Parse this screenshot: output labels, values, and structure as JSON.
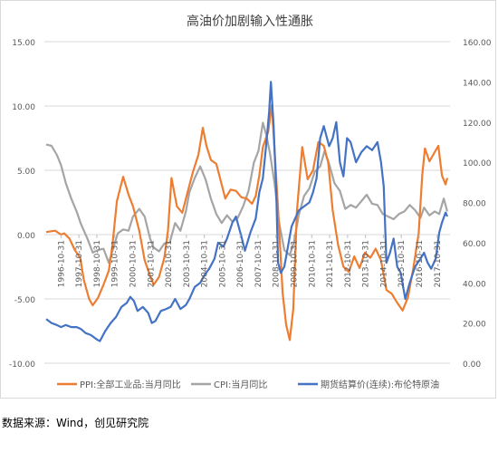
{
  "source_note": "数据来源：Wind，创见研究院",
  "colors": {
    "ppi": "#ED7D31",
    "cpi": "#A5A5A5",
    "oil": "#4472C4",
    "grid": "#D9D9D9",
    "text": "#595959"
  },
  "chart_data": {
    "type": "line",
    "title": "高油价加剧输入性通胀",
    "y_left": {
      "ylim": [
        -10,
        15
      ],
      "ticks": [
        "-10.00",
        "-5.00",
        "0.00",
        "5.00",
        "10.00",
        "15.00"
      ]
    },
    "y_right": {
      "ylim": [
        0,
        160
      ],
      "ticks": [
        "0.00",
        "20.00",
        "40.00",
        "60.00",
        "80.00",
        "100.00",
        "120.00",
        "140.00",
        "160.00"
      ]
    },
    "x_ticks": [
      "1996-10-31",
      "1997-10-31",
      "1998-10-31",
      "1999-10-31",
      "2000-10-31",
      "2001-10-31",
      "2002-10-31",
      "2003-10-31",
      "2004-10-31",
      "2005-10-31",
      "2006-10-31",
      "2007-10-31",
      "2008-10-31",
      "2009-10-31",
      "2010-10-31",
      "2011-10-31",
      "2012-10-31",
      "2013-10-31",
      "2014-10-31",
      "2015-10-31",
      "2016-10-31",
      "2017-10-31"
    ],
    "legend": {
      "position": "bottom"
    },
    "series": [
      {
        "name": "PPI:全部工业品:当月同比",
        "axis": "left",
        "color": "#ED7D31",
        "x": [
          1996.0,
          1996.5,
          1996.83,
          1997.0,
          1997.3,
          1997.6,
          1997.9,
          1998.1,
          1998.4,
          1998.6,
          1998.9,
          1999.2,
          1999.5,
          1999.7,
          1999.95,
          2000.3,
          2000.6,
          2000.85,
          2001.2,
          2001.5,
          2001.8,
          2002.0,
          2002.3,
          2002.6,
          2002.8,
          2003.0,
          2003.3,
          2003.6,
          2003.9,
          2004.2,
          2004.5,
          2004.75,
          2004.95,
          2005.2,
          2005.5,
          2005.8,
          2006.0,
          2006.3,
          2006.6,
          2006.9,
          2007.2,
          2007.5,
          2007.7,
          2007.9,
          2008.1,
          2008.4,
          2008.6,
          2008.75,
          2008.95,
          2009.2,
          2009.4,
          2009.6,
          2009.8,
          2010.0,
          2010.3,
          2010.6,
          2010.9,
          2011.2,
          2011.5,
          2011.75,
          2012.0,
          2012.3,
          2012.6,
          2012.9,
          2013.2,
          2013.5,
          2013.8,
          2014.1,
          2014.4,
          2014.7,
          2015.0,
          2015.3,
          2015.6,
          2015.9,
          2016.2,
          2016.5,
          2016.8,
          2017.0,
          2017.15,
          2017.4,
          2017.65,
          2017.9,
          2018.1,
          2018.3,
          2018.4
        ],
        "y": [
          0.2,
          0.3,
          0.0,
          0.1,
          -0.3,
          -1.2,
          -1.8,
          -3.5,
          -5.0,
          -5.5,
          -4.9,
          -3.9,
          -2.8,
          -0.8,
          2.6,
          4.5,
          3.1,
          2.2,
          0.3,
          -2.0,
          -3.2,
          -3.9,
          -3.3,
          -1.8,
          0.3,
          4.4,
          2.2,
          1.7,
          3.3,
          4.9,
          6.2,
          8.3,
          6.9,
          5.8,
          5.5,
          3.9,
          2.8,
          3.5,
          3.4,
          2.9,
          2.8,
          2.4,
          3.0,
          4.6,
          6.8,
          8.0,
          10.1,
          6.6,
          2.0,
          -4.5,
          -7.0,
          -8.2,
          -5.8,
          1.8,
          6.8,
          4.3,
          5.0,
          7.2,
          6.9,
          5.6,
          1.9,
          -0.8,
          -2.5,
          -2.9,
          -1.7,
          -2.6,
          -1.4,
          -1.8,
          -1.1,
          -2.0,
          -4.3,
          -4.6,
          -5.3,
          -5.9,
          -4.9,
          -2.6,
          0.1,
          4.6,
          6.7,
          5.7,
          6.3,
          6.9,
          4.6,
          3.9,
          4.4
        ]
      },
      {
        "name": "CPI:当月同比",
        "axis": "left",
        "color": "#A5A5A5",
        "x": [
          1996.0,
          1996.3,
          1996.6,
          1996.83,
          1997.1,
          1997.4,
          1997.7,
          1997.95,
          1998.3,
          1998.6,
          1998.9,
          1999.2,
          1999.5,
          1999.8,
          2000.0,
          2000.3,
          2000.6,
          2000.85,
          2001.2,
          2001.5,
          2001.8,
          2002.0,
          2002.3,
          2002.6,
          2002.9,
          2003.2,
          2003.5,
          2003.8,
          2004.0,
          2004.3,
          2004.6,
          2004.9,
          2005.2,
          2005.5,
          2005.8,
          2006.1,
          2006.4,
          2006.7,
          2007.0,
          2007.3,
          2007.6,
          2007.85,
          2008.1,
          2008.3,
          2008.5,
          2008.75,
          2009.0,
          2009.3,
          2009.6,
          2009.85,
          2010.1,
          2010.4,
          2010.7,
          2011.0,
          2011.3,
          2011.55,
          2011.8,
          2012.1,
          2012.4,
          2012.7,
          2013.0,
          2013.3,
          2013.6,
          2013.9,
          2014.2,
          2014.5,
          2014.8,
          2015.1,
          2015.4,
          2015.7,
          2016.0,
          2016.3,
          2016.6,
          2016.9,
          2017.1,
          2017.4,
          2017.7,
          2017.95,
          2018.2,
          2018.4
        ],
        "y": [
          7.0,
          6.9,
          6.2,
          5.4,
          4.0,
          2.8,
          1.8,
          0.8,
          -0.3,
          -1.4,
          -1.2,
          -1.1,
          -2.2,
          -0.8,
          0.1,
          0.4,
          0.3,
          1.4,
          2.0,
          1.4,
          -0.3,
          -1.0,
          -1.3,
          -0.7,
          -0.6,
          0.9,
          0.3,
          1.8,
          3.3,
          4.4,
          5.3,
          4.3,
          2.8,
          1.6,
          0.9,
          1.5,
          1.0,
          1.3,
          2.2,
          3.4,
          5.6,
          6.5,
          8.7,
          7.7,
          6.3,
          4.0,
          1.0,
          -1.2,
          -1.6,
          -0.5,
          1.5,
          3.0,
          3.6,
          4.9,
          5.3,
          6.5,
          5.5,
          4.0,
          3.4,
          2.0,
          2.3,
          2.1,
          2.6,
          3.1,
          2.4,
          2.3,
          1.6,
          1.4,
          1.2,
          1.6,
          1.8,
          2.3,
          1.9,
          1.3,
          2.1,
          1.5,
          1.8,
          1.6,
          2.8,
          1.8
        ]
      },
      {
        "name": "期货结算价(连续):布伦特原油",
        "axis": "right",
        "color": "#4472C4",
        "x": [
          1996.0,
          1996.3,
          1996.6,
          1996.83,
          1997.1,
          1997.4,
          1997.7,
          1997.95,
          1998.2,
          1998.5,
          1998.8,
          1999.0,
          1999.3,
          1999.6,
          1999.9,
          2000.2,
          2000.5,
          2000.7,
          2000.9,
          2001.1,
          2001.4,
          2001.7,
          2001.9,
          2002.1,
          2002.4,
          2002.7,
          2002.95,
          2003.2,
          2003.5,
          2003.8,
          2004.0,
          2004.3,
          2004.6,
          2004.85,
          2005.1,
          2005.4,
          2005.6,
          2005.9,
          2006.1,
          2006.4,
          2006.6,
          2006.9,
          2007.1,
          2007.4,
          2007.7,
          2007.9,
          2008.1,
          2008.3,
          2008.45,
          2008.55,
          2008.7,
          2008.85,
          2008.95,
          2009.1,
          2009.3,
          2009.5,
          2009.7,
          2009.9,
          2010.1,
          2010.4,
          2010.7,
          2010.9,
          2011.1,
          2011.3,
          2011.5,
          2011.8,
          2012.0,
          2012.2,
          2012.4,
          2012.6,
          2012.8,
          2013.0,
          2013.3,
          2013.6,
          2013.9,
          2014.2,
          2014.5,
          2014.7,
          2014.85,
          2015.0,
          2015.2,
          2015.4,
          2015.6,
          2015.8,
          2015.95,
          2016.05,
          2016.3,
          2016.6,
          2016.9,
          2017.1,
          2017.3,
          2017.5,
          2017.75,
          2017.95,
          2018.1,
          2018.3,
          2018.4
        ],
        "y": [
          22,
          20,
          19,
          18,
          19,
          18,
          18,
          17,
          15,
          14,
          12,
          11,
          16,
          20,
          23,
          28,
          30,
          33,
          31,
          26,
          28,
          25,
          20,
          21,
          26,
          27,
          28,
          32,
          27,
          29,
          32,
          38,
          40,
          44,
          47,
          52,
          60,
          58,
          62,
          70,
          73,
          63,
          56,
          65,
          72,
          85,
          92,
          110,
          125,
          140,
          118,
          85,
          50,
          45,
          48,
          58,
          68,
          72,
          76,
          78,
          80,
          85,
          92,
          112,
          118,
          108,
          112,
          120,
          100,
          93,
          112,
          110,
          100,
          105,
          108,
          106,
          110,
          100,
          88,
          50,
          55,
          62,
          48,
          45,
          37,
          32,
          40,
          48,
          52,
          55,
          50,
          47,
          52,
          65,
          70,
          75,
          73
        ]
      }
    ]
  }
}
